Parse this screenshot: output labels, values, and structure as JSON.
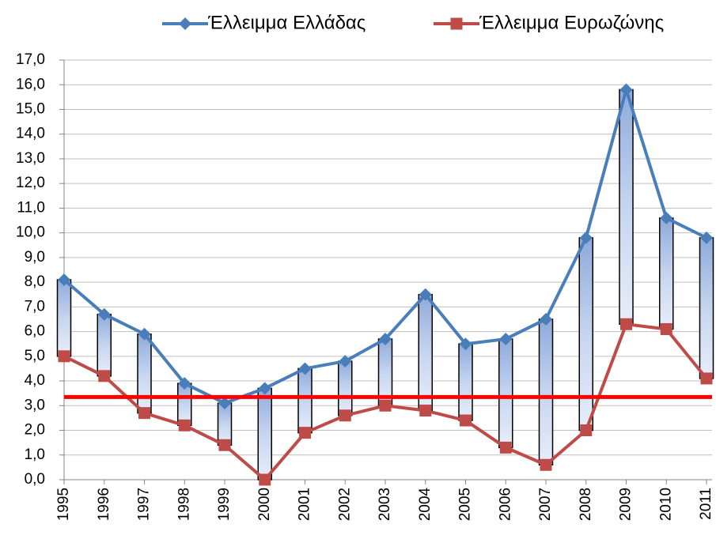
{
  "chart_data": {
    "type": "line",
    "categories": [
      "1995",
      "1996",
      "1997",
      "1998",
      "1999",
      "2000",
      "2001",
      "2002",
      "2003",
      "2004",
      "2005",
      "2006",
      "2007",
      "2008",
      "2009",
      "2010",
      "2011"
    ],
    "series": [
      {
        "name": "Έλλειμμα Ελλάδας",
        "color": "#4a7ebb",
        "marker": "diamond",
        "values": [
          8.1,
          6.7,
          5.9,
          3.9,
          3.1,
          3.7,
          4.5,
          4.8,
          5.7,
          7.5,
          5.5,
          5.7,
          6.5,
          9.8,
          15.8,
          10.6,
          9.8
        ]
      },
      {
        "name": "Έλλειμμα Ευρωζώνης",
        "color": "#be4b48",
        "marker": "square",
        "values": [
          5.0,
          4.2,
          2.7,
          2.2,
          1.4,
          0.0,
          1.9,
          2.6,
          3.0,
          2.8,
          2.4,
          1.3,
          0.6,
          2.0,
          6.3,
          6.1,
          4.1
        ]
      }
    ],
    "up_down_bars": true,
    "reference_line": {
      "value": 3.35,
      "color": "#ff0000"
    },
    "ylim": [
      0,
      17
    ],
    "yticks": [
      {
        "value": 0,
        "label": "0,0"
      },
      {
        "value": 1,
        "label": "1,0"
      },
      {
        "value": 2,
        "label": "2,0"
      },
      {
        "value": 3,
        "label": "3,0"
      },
      {
        "value": 4,
        "label": "4,0"
      },
      {
        "value": 5,
        "label": "5,0"
      },
      {
        "value": 6,
        "label": "6,0"
      },
      {
        "value": 7,
        "label": "7,0"
      },
      {
        "value": 8,
        "label": "8,0"
      },
      {
        "value": 9,
        "label": "9,0"
      },
      {
        "value": 10,
        "label": "10,0"
      },
      {
        "value": 11,
        "label": "11,0"
      },
      {
        "value": 12,
        "label": "12,0"
      },
      {
        "value": 13,
        "label": "13,0"
      },
      {
        "value": 14,
        "label": "14,0"
      },
      {
        "value": 15,
        "label": "15,0"
      },
      {
        "value": 16,
        "label": "16,0"
      },
      {
        "value": 17,
        "label": "17,0"
      }
    ],
    "grid": true,
    "legend": "top"
  }
}
